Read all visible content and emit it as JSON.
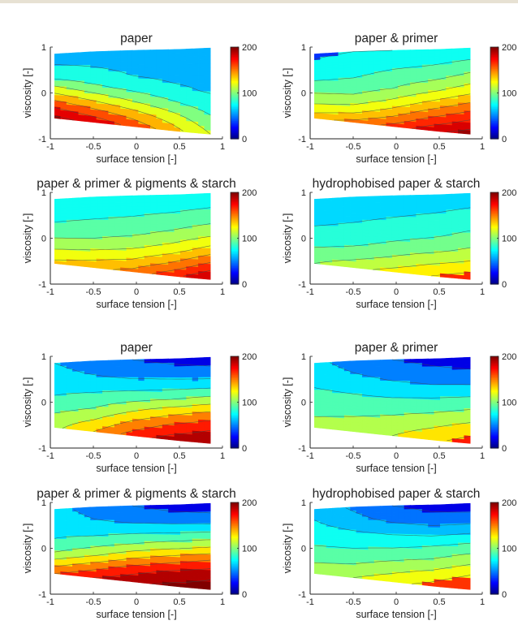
{
  "figure": {
    "background": "#ffffff",
    "colormap": "jet",
    "contour_line_color": "#3b4a4a"
  },
  "chart_data": [
    {
      "type": "contour",
      "title": "paper",
      "xlabel": "surface tension [-]",
      "ylabel": "viscosity [-]",
      "xlim": [
        -1,
        1
      ],
      "ylim": [
        -1,
        1
      ],
      "x_ticks": [
        "-1",
        "-0.5",
        "0",
        "0.5",
        "1"
      ],
      "y_ticks": [
        "-1",
        "0",
        "1"
      ],
      "colorbar": {
        "ticks": [
          "0",
          "100",
          "200"
        ],
        "range": [
          0,
          200
        ]
      },
      "x": [
        -0.95,
        -0.5,
        0.0,
        0.5,
        0.86
      ],
      "y_bottom": [
        -0.55,
        -0.64,
        -0.74,
        -0.84,
        -0.9
      ],
      "y_top": [
        0.85,
        0.9,
        0.93,
        0.95,
        0.98
      ],
      "z_grid": [
        [
          195,
          170,
          140,
          110,
          80,
          70,
          68
        ],
        [
          185,
          155,
          125,
          95,
          75,
          68,
          66
        ],
        [
          165,
          140,
          110,
          85,
          70,
          66,
          64
        ],
        [
          140,
          120,
          95,
          75,
          66,
          64,
          63
        ],
        [
          110,
          95,
          80,
          68,
          64,
          62,
          62
        ]
      ],
      "levels": [
        50,
        70,
        90,
        110,
        130,
        150,
        170,
        190
      ]
    },
    {
      "type": "contour",
      "title": "paper & primer",
      "xlabel": "surface tension [-]",
      "ylabel": "viscosity [-]",
      "xlim": [
        -1,
        1
      ],
      "ylim": [
        -1,
        1
      ],
      "x_ticks": [
        "-1",
        "-0.5",
        "0",
        "0.5",
        "1"
      ],
      "y_ticks": [
        "-1",
        "0",
        "1"
      ],
      "colorbar": {
        "ticks": [
          "0",
          "100",
          "200"
        ],
        "range": [
          0,
          200
        ]
      },
      "x": [
        -0.95,
        -0.5,
        0.0,
        0.5,
        0.86
      ],
      "y_bottom": [
        -0.55,
        -0.64,
        -0.74,
        -0.84,
        -0.9
      ],
      "y_top": [
        0.85,
        0.9,
        0.93,
        0.95,
        0.98
      ],
      "z_grid": [
        [
          140,
          120,
          105,
          90,
          80,
          72,
          68
        ],
        [
          150,
          125,
          105,
          92,
          83,
          76,
          70
        ],
        [
          165,
          140,
          118,
          100,
          90,
          80,
          70
        ],
        [
          185,
          160,
          135,
          112,
          95,
          83,
          72
        ],
        [
          198,
          175,
          150,
          125,
          105,
          88,
          73
        ]
      ],
      "levels": [
        70,
        85,
        100,
        115,
        130,
        145,
        160,
        175,
        190
      ]
    },
    {
      "type": "contour",
      "title": "paper & primer & pigments & starch",
      "xlabel": "surface tension [-]",
      "ylabel": "viscosity [-]",
      "xlim": [
        -1,
        1
      ],
      "ylim": [
        -1,
        1
      ],
      "x_ticks": [
        "-1",
        "-0.5",
        "0",
        "0.5",
        "1"
      ],
      "y_ticks": [
        "-1",
        "0",
        "1"
      ],
      "colorbar": {
        "ticks": [
          "0",
          "100",
          "200"
        ],
        "range": [
          0,
          200
        ]
      },
      "x": [
        -0.95,
        -0.5,
        0.0,
        0.5,
        0.86
      ],
      "y_bottom": [
        -0.55,
        -0.64,
        -0.74,
        -0.84,
        -0.9
      ],
      "y_top": [
        0.85,
        0.9,
        0.93,
        0.95,
        0.98
      ],
      "z_grid": [
        [
          135,
          120,
          105,
          92,
          84,
          78,
          72
        ],
        [
          140,
          124,
          106,
          94,
          86,
          78,
          72
        ],
        [
          150,
          130,
          112,
          98,
          88,
          80,
          73
        ],
        [
          170,
          145,
          122,
          105,
          92,
          82,
          74
        ],
        [
          192,
          165,
          138,
          115,
          98,
          85,
          76
        ]
      ],
      "levels": [
        70,
        85,
        100,
        115,
        130,
        145,
        160,
        175,
        190
      ]
    },
    {
      "type": "contour",
      "title": "hydrophobised paper & starch",
      "xlabel": "surface tension [-]",
      "ylabel": "viscosity [-]",
      "xlim": [
        -1,
        1
      ],
      "ylim": [
        -1,
        1
      ],
      "x_ticks": [
        "-1",
        "-0.5",
        "0",
        "0.5",
        "1"
      ],
      "y_ticks": [
        "-1",
        "0",
        "1"
      ],
      "colorbar": {
        "ticks": [
          "0",
          "100",
          "200"
        ],
        "range": [
          0,
          200
        ]
      },
      "x": [
        -0.95,
        -0.5,
        0.0,
        0.5,
        0.86
      ],
      "y_bottom": [
        -0.55,
        -0.64,
        -0.74,
        -0.84,
        -0.9
      ],
      "y_top": [
        0.85,
        0.9,
        0.93,
        0.95,
        0.98
      ],
      "z_grid": [
        [
          105,
          95,
          85,
          78,
          72,
          66,
          60
        ],
        [
          115,
          100,
          88,
          80,
          74,
          68,
          62
        ],
        [
          125,
          108,
          94,
          84,
          77,
          70,
          63
        ],
        [
          135,
          118,
          100,
          88,
          80,
          72,
          65
        ],
        [
          145,
          125,
          108,
          94,
          84,
          75,
          67
        ]
      ],
      "levels": [
        60,
        75,
        90,
        105,
        120,
        135
      ]
    },
    {
      "type": "contour",
      "title": "paper",
      "xlabel": "surface tension [-]",
      "ylabel": "viscosity [-]",
      "xlim": [
        -1,
        1
      ],
      "ylim": [
        -1,
        1
      ],
      "x_ticks": [
        "-1",
        "-0.5",
        "0",
        "0.5",
        "1"
      ],
      "y_ticks": [
        "-1",
        "0",
        "1"
      ],
      "colorbar": {
        "ticks": [
          "0",
          "100",
          "200"
        ],
        "range": [
          0,
          200
        ]
      },
      "x": [
        -0.95,
        -0.5,
        0.0,
        0.5,
        0.86
      ],
      "y_bottom": [
        -0.55,
        -0.64,
        -0.74,
        -0.84,
        -0.9
      ],
      "y_top": [
        0.85,
        0.9,
        0.93,
        0.95,
        0.98
      ],
      "z_grid": [
        [
          115,
          105,
          90,
          80,
          72,
          66,
          60
        ],
        [
          140,
          120,
          100,
          85,
          70,
          58,
          50
        ],
        [
          170,
          145,
          118,
          92,
          70,
          50,
          40
        ],
        [
          190,
          165,
          135,
          100,
          72,
          48,
          35
        ],
        [
          200,
          178,
          148,
          110,
          75,
          45,
          32
        ]
      ],
      "levels": [
        40,
        60,
        80,
        100,
        120,
        140,
        160,
        180
      ]
    },
    {
      "type": "contour",
      "title": "paper & primer",
      "xlabel": "surface tension [-]",
      "ylabel": "viscosity [-]",
      "xlim": [
        -1,
        1
      ],
      "ylim": [
        -1,
        1
      ],
      "x_ticks": [
        "-1",
        "-0.5",
        "0",
        "0.5",
        "1"
      ],
      "y_ticks": [
        "-1",
        "0",
        "1"
      ],
      "colorbar": {
        "ticks": [
          "0",
          "100",
          "200"
        ],
        "range": [
          0,
          200
        ]
      },
      "x": [
        -0.95,
        -0.5,
        0.0,
        0.5,
        0.86
      ],
      "y_bottom": [
        -0.55,
        -0.64,
        -0.74,
        -0.84,
        -0.9
      ],
      "y_top": [
        0.85,
        0.9,
        0.93,
        0.95,
        0.98
      ],
      "z_grid": [
        [
          105,
          100,
          92,
          85,
          78,
          70,
          65
        ],
        [
          110,
          103,
          92,
          82,
          72,
          60,
          52
        ],
        [
          120,
          108,
          95,
          80,
          65,
          50,
          40
        ],
        [
          135,
          118,
          100,
          82,
          62,
          45,
          35
        ],
        [
          150,
          130,
          108,
          86,
          62,
          42,
          30
        ]
      ],
      "levels": [
        40,
        60,
        80,
        100,
        120,
        140
      ]
    },
    {
      "type": "contour",
      "title": "paper & primer & pigments & starch",
      "xlabel": "surface tension [-]",
      "ylabel": "viscosity [-]",
      "xlim": [
        -1,
        1
      ],
      "ylim": [
        -1,
        1
      ],
      "x_ticks": [
        "-1",
        "-0.5",
        "0",
        "0.5",
        "1"
      ],
      "y_ticks": [
        "-1",
        "0",
        "1"
      ],
      "colorbar": {
        "ticks": [
          "0",
          "100",
          "200"
        ],
        "range": [
          0,
          200
        ]
      },
      "x": [
        -0.95,
        -0.5,
        0.0,
        0.5,
        0.86
      ],
      "y_bottom": [
        -0.55,
        -0.64,
        -0.74,
        -0.84,
        -0.9
      ],
      "y_top": [
        0.85,
        0.9,
        0.93,
        0.95,
        0.98
      ],
      "z_grid": [
        [
          160,
          130,
          100,
          82,
          75,
          70,
          66
        ],
        [
          180,
          150,
          115,
          90,
          72,
          60,
          52
        ],
        [
          195,
          170,
          135,
          100,
          75,
          52,
          40
        ],
        [
          205,
          185,
          150,
          110,
          78,
          48,
          33
        ],
        [
          210,
          195,
          162,
          118,
          80,
          45,
          30
        ]
      ],
      "levels": [
        40,
        60,
        80,
        100,
        120,
        140,
        160,
        180,
        200
      ]
    },
    {
      "type": "contour",
      "title": "hydrophobised paper & starch",
      "xlabel": "surface tension [-]",
      "ylabel": "viscosity [-]",
      "xlim": [
        -1,
        1
      ],
      "ylim": [
        -1,
        1
      ],
      "x_ticks": [
        "-1",
        "-0.5",
        "0",
        "0.5",
        "1"
      ],
      "y_ticks": [
        "-1",
        "0",
        "1"
      ],
      "colorbar": {
        "ticks": [
          "0",
          "100",
          "200"
        ],
        "range": [
          0,
          200
        ]
      },
      "x": [
        -0.95,
        -0.5,
        0.0,
        0.5,
        0.86
      ],
      "y_bottom": [
        -0.55,
        -0.64,
        -0.74,
        -0.84,
        -0.9
      ],
      "y_top": [
        0.85,
        0.9,
        0.93,
        0.95,
        0.98
      ],
      "z_grid": [
        [
          110,
          100,
          90,
          82,
          75,
          70,
          66
        ],
        [
          115,
          102,
          90,
          80,
          70,
          60,
          52
        ],
        [
          125,
          110,
          95,
          80,
          66,
          50,
          40
        ],
        [
          135,
          118,
          100,
          84,
          64,
          45,
          35
        ],
        [
          150,
          130,
          110,
          90,
          68,
          45,
          32
        ]
      ],
      "levels": [
        40,
        55,
        70,
        85,
        100,
        115,
        130
      ]
    }
  ]
}
